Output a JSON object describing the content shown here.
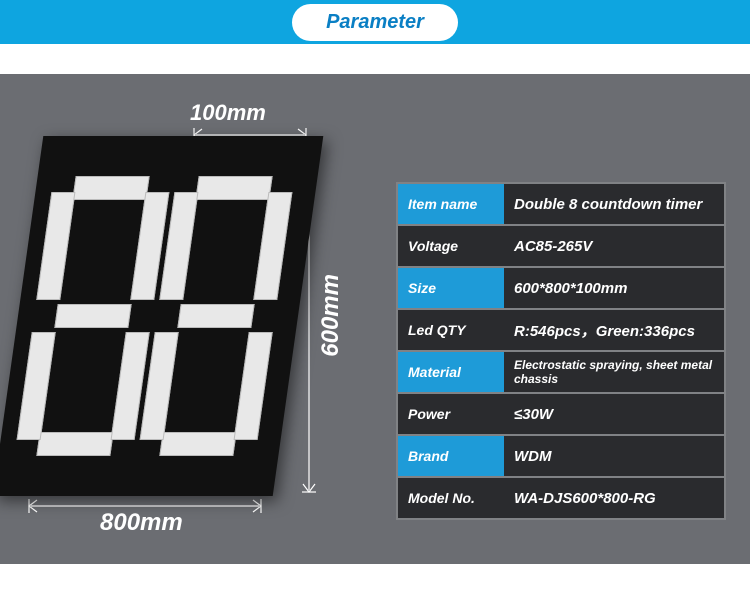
{
  "colors": {
    "stripe_bg": "#0ea5e0",
    "pill_text": "#0a7fc4",
    "main_bg": "#6b6d72",
    "row_blue": "#1e9bd8",
    "row_dark": "#2a2b2e",
    "tbl_border": "#808285"
  },
  "header": {
    "title": "Parameter"
  },
  "dimensions": {
    "depth": "100mm",
    "height": "600mm",
    "width": "800mm"
  },
  "spec_rows": [
    {
      "label": "Item name",
      "value": "Double 8 countdown timer",
      "alt": true
    },
    {
      "label": "Voltage",
      "value": "AC85-265V",
      "alt": false
    },
    {
      "label": "Size",
      "value": "600*800*100mm",
      "alt": true
    },
    {
      "label": "Led QTY",
      "value": "R:546pcs，Green:336pcs",
      "alt": false
    },
    {
      "label": "Material",
      "value": "Electrostatic spraying, sheet metal chassis",
      "alt": true,
      "small": true
    },
    {
      "label": "Power",
      "value": "≤30W",
      "alt": false
    },
    {
      "label": "Brand",
      "value": "WDM",
      "alt": true
    },
    {
      "label": "Model No.",
      "value": "WA-DJS600*800-RG",
      "alt": false
    }
  ]
}
